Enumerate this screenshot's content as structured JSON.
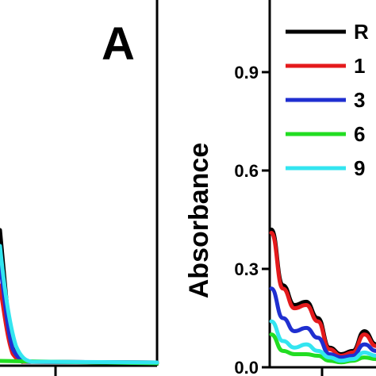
{
  "panel_a": {
    "label": "A"
  },
  "chart_data": {
    "type": "line",
    "ylabel": "Absorbance",
    "ylim": [
      0,
      1.12
    ],
    "yticks": [
      0.0,
      0.3,
      0.6,
      0.9
    ],
    "ytick_labels": [
      "0.0",
      "0.3",
      "0.6",
      "0.9"
    ],
    "legend_placement": "top-right",
    "series": [
      {
        "name": "R",
        "color": "#000000",
        "values": [
          0.42,
          0.25,
          0.19,
          0.2,
          0.15,
          0.06,
          0.04,
          0.05,
          0.11,
          0.07
        ]
      },
      {
        "name": "1",
        "color": "#e41a1c",
        "values": [
          0.41,
          0.24,
          0.18,
          0.19,
          0.14,
          0.055,
          0.035,
          0.045,
          0.1,
          0.065
        ]
      },
      {
        "name": "3",
        "color": "#1f2fd0",
        "values": [
          0.24,
          0.15,
          0.11,
          0.12,
          0.09,
          0.04,
          0.03,
          0.035,
          0.07,
          0.05
        ]
      },
      {
        "name": "6",
        "color": "#22dd22",
        "values": [
          0.1,
          0.05,
          0.04,
          0.04,
          0.035,
          0.02,
          0.015,
          0.02,
          0.03,
          0.025
        ]
      },
      {
        "name": "9",
        "color": "#33e5f0",
        "values": [
          0.14,
          0.08,
          0.06,
          0.07,
          0.05,
          0.03,
          0.02,
          0.025,
          0.045,
          0.035
        ]
      }
    ]
  }
}
